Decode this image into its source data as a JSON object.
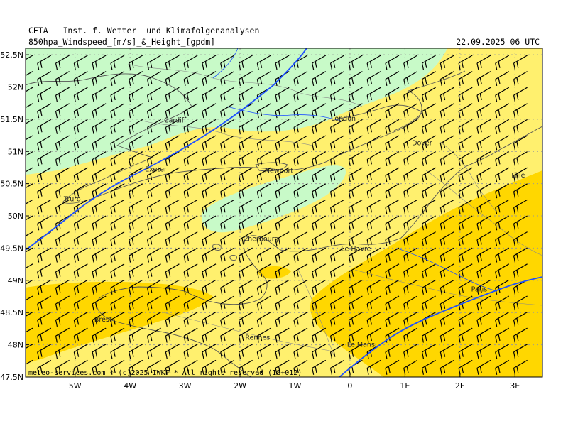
{
  "header": {
    "institute": "CETA – Inst. f. Wetter– und Klimafolgenanalysen –",
    "product": "850hpa_Windspeed_[m/s]_&_Height_[gpdm]",
    "valid_time": "22.09.2025 06 UTC"
  },
  "map": {
    "lon_range": [
      -5.9,
      3.5
    ],
    "lat_range": [
      47.5,
      52.6
    ],
    "lat_ticks": [
      "52.5N",
      "52N",
      "51.5N",
      "51N",
      "50.5N",
      "50N",
      "49.5N",
      "49N",
      "48.5N",
      "48N",
      "47.5N"
    ],
    "lon_ticks": [
      "5W",
      "4W",
      "3W",
      "2W",
      "1W",
      "0",
      "1E",
      "2E",
      "3E"
    ],
    "colors": {
      "calm": "#c8fac8",
      "light": "#fff06e",
      "moderate": "#ffd700",
      "barb": "#000000",
      "contour": "#1e50ff",
      "grid": "#999999",
      "coast": "#555555",
      "border": "#999999"
    },
    "wind_barb_direction_deg": 240,
    "cities": [
      {
        "name": "Cardiff",
        "lon": -3.18,
        "lat": 51.48
      },
      {
        "name": "London",
        "lon": -0.12,
        "lat": 51.51
      },
      {
        "name": "Dover",
        "lon": 1.31,
        "lat": 51.13
      },
      {
        "name": "Exeter",
        "lon": -3.53,
        "lat": 50.72
      },
      {
        "name": "Newport",
        "lon": -1.29,
        "lat": 50.7
      },
      {
        "name": "Truro",
        "lon": -5.05,
        "lat": 50.26
      },
      {
        "name": "Lille",
        "lon": 3.06,
        "lat": 50.63
      },
      {
        "name": "Cherbourg",
        "lon": -1.62,
        "lat": 49.64
      },
      {
        "name": "Le Havre",
        "lon": 0.11,
        "lat": 49.49
      },
      {
        "name": "Paris",
        "lon": 2.35,
        "lat": 48.86
      },
      {
        "name": "Brest",
        "lon": -4.49,
        "lat": 48.39
      },
      {
        "name": "Rennes",
        "lon": -1.68,
        "lat": 48.11
      },
      {
        "name": "Le Mans",
        "lon": 0.2,
        "lat": 48.0
      }
    ]
  },
  "copyright": "meteo-services.com * (c)2025 IWKF * All rights reserved (18+012)"
}
